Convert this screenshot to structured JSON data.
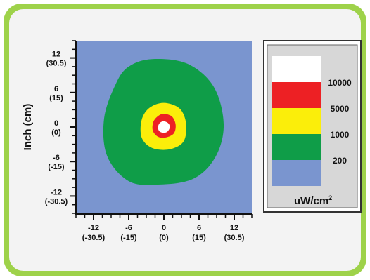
{
  "colors": {
    "frame": "#9ed24a",
    "panel": "#f3f3f3",
    "background_level": "#7a95cf",
    "level_200": "#0f9d48",
    "level_1000": "#fbee0a",
    "level_5000": "#ed2024",
    "level_10000": "#ffffff"
  },
  "chart_data": {
    "type": "heatmap",
    "title": "",
    "ylabel": "Inch (cm)",
    "xlabel": "",
    "xlim": [
      -15,
      15
    ],
    "ylim": [
      -15,
      15
    ],
    "x_ticks": [
      {
        "value": -12,
        "inch": "-12",
        "cm": "(-30.5)"
      },
      {
        "value": -6,
        "inch": "-6",
        "cm": "(-15)"
      },
      {
        "value": 0,
        "inch": "0",
        "cm": "(0)"
      },
      {
        "value": 6,
        "inch": "6",
        "cm": "(15)"
      },
      {
        "value": 12,
        "inch": "12",
        "cm": "(30.5)"
      }
    ],
    "y_ticks": [
      {
        "value": 12,
        "inch": "12",
        "cm": "(30.5)"
      },
      {
        "value": 6,
        "inch": "6",
        "cm": "(15)"
      },
      {
        "value": 0,
        "inch": "0",
        "cm": "(0)"
      },
      {
        "value": -6,
        "inch": "-6",
        "cm": "(-15)"
      },
      {
        "value": -12,
        "inch": "-12",
        "cm": "(-30.5)"
      }
    ],
    "contours": [
      {
        "level": "200",
        "color": "#0f9d48",
        "points": [
          [
            -6.0,
            10.5
          ],
          [
            -2,
            11.8
          ],
          [
            4,
            11.0
          ],
          [
            8.5,
            7.0
          ],
          [
            10.2,
            0.5
          ],
          [
            8.8,
            -5.2
          ],
          [
            5.0,
            -9.0
          ],
          [
            -1,
            -10.0
          ],
          [
            -6,
            -9.4
          ],
          [
            -9.7,
            -5.0
          ],
          [
            -10.2,
            1.5
          ],
          [
            -8.2,
            7.5
          ]
        ]
      },
      {
        "level": "1000",
        "color": "#fbee0a",
        "points": [
          [
            0,
            4.2
          ],
          [
            2.7,
            3.2
          ],
          [
            3.8,
            0.5
          ],
          [
            3.3,
            -2.6
          ],
          [
            0.8,
            -3.9
          ],
          [
            -2.1,
            -3.6
          ],
          [
            -3.8,
            -1.8
          ],
          [
            -3.8,
            1.2
          ],
          [
            -2.5,
            3.3
          ]
        ]
      },
      {
        "level": "5000",
        "color": "#ed2024",
        "points": [
          [
            0,
            2.3
          ],
          [
            1.4,
            1.8
          ],
          [
            2.0,
            0.4
          ],
          [
            1.7,
            -1.1
          ],
          [
            0.4,
            -1.8
          ],
          [
            -1.0,
            -1.7
          ],
          [
            -1.9,
            -0.6
          ],
          [
            -1.8,
            0.9
          ],
          [
            -1.0,
            1.9
          ]
        ]
      },
      {
        "level": "10000",
        "color": "#ffffff",
        "points": [
          [
            0,
            1.0
          ],
          [
            0.8,
            0.6
          ],
          [
            1.0,
            -0.1
          ],
          [
            0.6,
            -0.8
          ],
          [
            -0.1,
            -1.0
          ],
          [
            -0.8,
            -0.7
          ],
          [
            -1.0,
            0.0
          ],
          [
            -0.7,
            0.7
          ]
        ]
      }
    ],
    "legend": {
      "placement": "right",
      "unit_text": "uW/cm",
      "unit_exp": "2",
      "levels": [
        {
          "label": "",
          "color": "#ffffff"
        },
        {
          "label": "10000",
          "color": "#ed2024"
        },
        {
          "label": "5000",
          "color": "#fbee0a"
        },
        {
          "label": "1000",
          "color": "#0f9d48"
        },
        {
          "label": "200",
          "color": "#7a95cf"
        }
      ]
    }
  }
}
